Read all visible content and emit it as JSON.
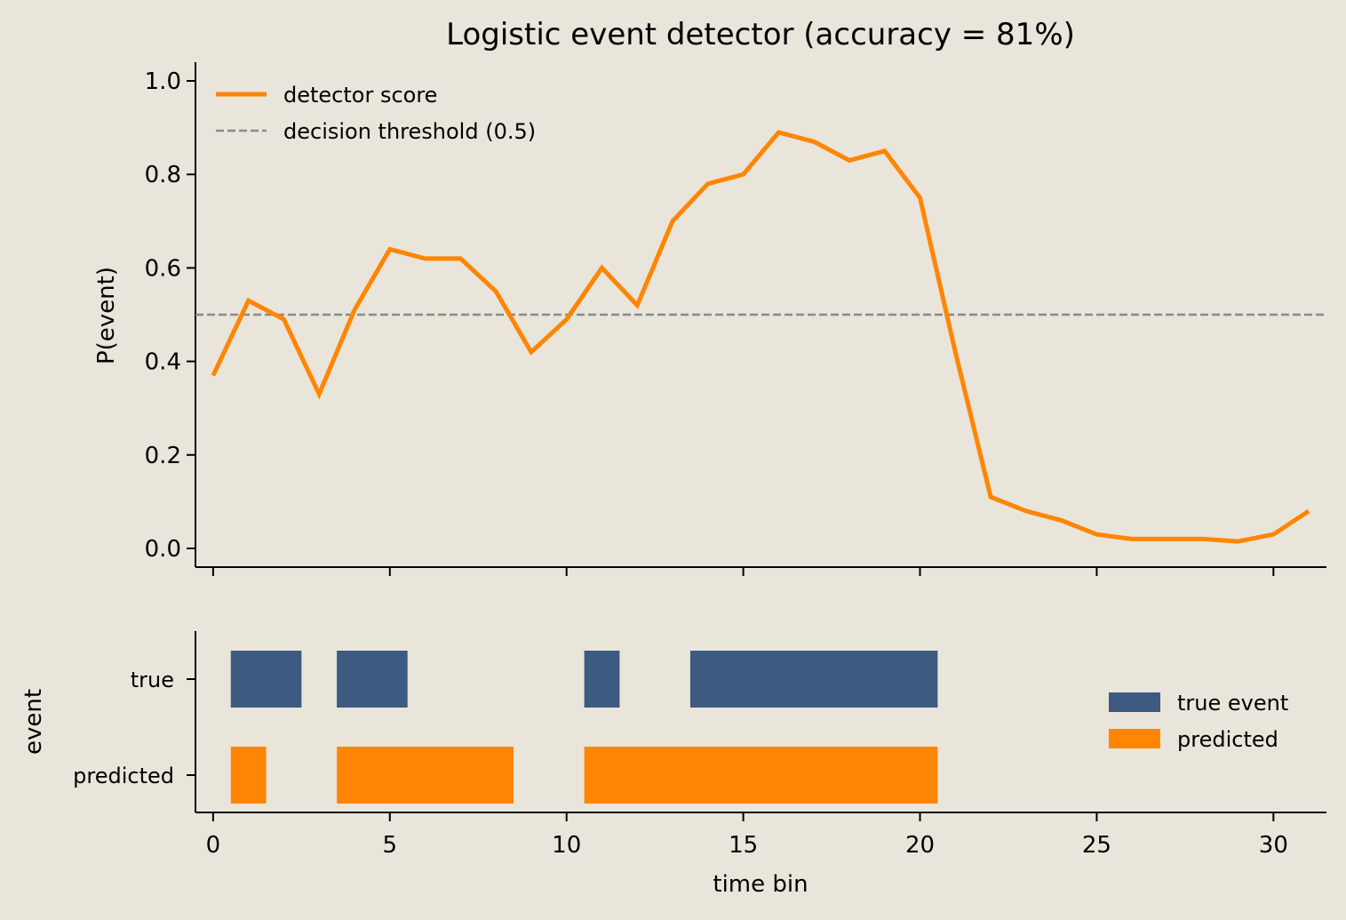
{
  "chart_data": {
    "type": "line",
    "title": "Logistic event detector (accuracy = 81%)",
    "score_panel": {
      "ylabel": "P(event)",
      "ylim": [
        -0.04,
        1.04
      ],
      "xlim": [
        -0.5,
        31.5
      ],
      "yticks": [
        0.0,
        0.2,
        0.4,
        0.6,
        0.8,
        1.0
      ],
      "ytick_labels": [
        "0.0",
        "0.2",
        "0.4",
        "0.6",
        "0.8",
        "1.0"
      ],
      "legend_position": "upper-left",
      "series": [
        {
          "name": "detector score",
          "color": "#ff8503",
          "x": [
            0,
            1,
            2,
            3,
            4,
            5,
            6,
            7,
            8,
            9,
            10,
            11,
            12,
            13,
            14,
            15,
            16,
            17,
            18,
            19,
            20,
            21,
            22,
            23,
            24,
            25,
            26,
            27,
            28,
            29,
            30,
            31
          ],
          "values": [
            0.37,
            0.53,
            0.49,
            0.33,
            0.51,
            0.64,
            0.62,
            0.62,
            0.55,
            0.42,
            0.49,
            0.6,
            0.52,
            0.7,
            0.78,
            0.8,
            0.89,
            0.87,
            0.83,
            0.85,
            0.75,
            0.42,
            0.11,
            0.08,
            0.06,
            0.03,
            0.02,
            0.02,
            0.02,
            0.015,
            0.03,
            0.08
          ]
        }
      ],
      "threshold": {
        "name": "decision threshold (0.5)",
        "value": 0.5,
        "color": "#8a8a8a"
      }
    },
    "event_panel": {
      "ylabel": "event",
      "xlabel": "time bin",
      "xlim": [
        -0.5,
        31.5
      ],
      "xticks": [
        0,
        5,
        10,
        15,
        20,
        25,
        30
      ],
      "xtick_labels": [
        "0",
        "5",
        "10",
        "15",
        "20",
        "25",
        "30"
      ],
      "row_labels": [
        "true",
        "predicted"
      ],
      "legend_position": "center-right",
      "legend": [
        {
          "name": "true event",
          "color": "#3d5a80"
        },
        {
          "name": "predicted",
          "color": "#ff8503"
        }
      ],
      "true_intervals": [
        [
          0.5,
          2.5
        ],
        [
          3.5,
          5.5
        ],
        [
          10.5,
          11.5
        ],
        [
          13.5,
          20.5
        ]
      ],
      "predicted_intervals": [
        [
          0.5,
          1.5
        ],
        [
          3.5,
          8.5
        ],
        [
          10.5,
          20.5
        ]
      ]
    }
  }
}
